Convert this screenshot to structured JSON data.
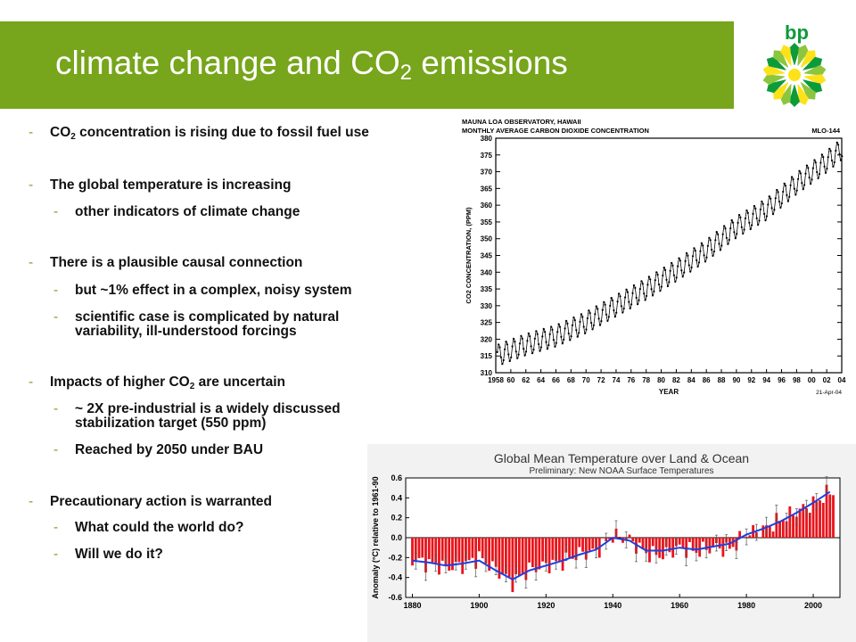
{
  "slide": {
    "title_main": "climate change and CO",
    "title_sub": "2",
    "title_tail": " emissions",
    "logo_text": "bp"
  },
  "bullets": [
    {
      "level": 1,
      "pre": "CO",
      "sub": "2",
      "post": " concentration is rising due to fossil fuel use"
    },
    {
      "level": 1,
      "pre": "The global temperature is increasing"
    },
    {
      "level": 2,
      "pre": "other indicators of climate change"
    },
    {
      "level": 1,
      "pre": "There is a plausible causal connection"
    },
    {
      "level": 2,
      "pre": "but ~1% effect in a complex, noisy system"
    },
    {
      "level": 2,
      "pre": "scientific case is complicated by natural",
      "line2": "variability, ill-understood forcings"
    },
    {
      "level": 1,
      "pre": "Impacts of higher CO",
      "sub": "2",
      "post": " are uncertain"
    },
    {
      "level": 2,
      "pre": "~ 2X pre-industrial is a widely discussed",
      "line2": "stabilization target (550 ppm)"
    },
    {
      "level": 2,
      "pre": "Reached by 2050 under BAU"
    },
    {
      "level": 1,
      "pre": "Precautionary action is warranted"
    },
    {
      "level": 2,
      "pre": "What could the world do?"
    },
    {
      "level": 2,
      "pre": "Will we do it?"
    }
  ],
  "chart_data": [
    {
      "type": "line",
      "title": "MAUNA LOA OBSERVATORY, HAWAII",
      "subtitle": "MONTHLY AVERAGE CARBON DIOXIDE CONCENTRATION",
      "tag": "MLO-144",
      "ylabel": "CO2 CONCENTRATION, (PPM)",
      "xlabel": "YEAR",
      "date_note": "21-Apr-04",
      "ylim": [
        310,
        380
      ],
      "xlim": [
        1958,
        2004
      ],
      "yticks": [
        310,
        315,
        320,
        325,
        330,
        335,
        340,
        345,
        350,
        355,
        360,
        365,
        370,
        375,
        380
      ],
      "xtick_labels": [
        "1958",
        "60",
        "62",
        "64",
        "66",
        "68",
        "70",
        "72",
        "74",
        "76",
        "78",
        "80",
        "82",
        "84",
        "86",
        "88",
        "90",
        "92",
        "94",
        "96",
        "98",
        "00",
        "02",
        "04"
      ],
      "series": [
        {
          "x": [
            1958,
            1962,
            1966,
            1970,
            1974,
            1978,
            1982,
            1986,
            1990,
            1994,
            1998,
            2002,
            2004
          ],
          "y": [
            315.0,
            318.4,
            321.0,
            325.0,
            330.0,
            335.0,
            340.5,
            346.5,
            353.5,
            358.8,
            366.5,
            373.0,
            376.8
          ]
        }
      ],
      "seasonal_amplitude": 3.2,
      "color": "#000000"
    },
    {
      "type": "bar",
      "title": "Global Mean Temperature over Land & Ocean",
      "subtitle": "Preliminary: New NOAA Surface Temperatures",
      "ylabel": "Anomaly (°C) relative to 1961-90",
      "ylim": [
        -0.6,
        0.6
      ],
      "xlim": [
        1878,
        2008
      ],
      "yticks": [
        "0.6",
        "0.4",
        "0.2",
        "0.0",
        "-0.2",
        "-0.4",
        "-0.6"
      ],
      "xtick_labels": [
        "1880",
        "1900",
        "1920",
        "1940",
        "1960",
        "1980",
        "2000"
      ],
      "bar_color": "#e8141b",
      "smooth_color": "#1d3fe0",
      "series": [
        {
          "name": "annual",
          "x": [
            1880,
            1885,
            1890,
            1895,
            1900,
            1905,
            1910,
            1915,
            1920,
            1925,
            1930,
            1935,
            1940,
            1945,
            1950,
            1955,
            1960,
            1965,
            1970,
            1975,
            1980,
            1985,
            1990,
            1995,
            2000,
            2005
          ],
          "y": [
            -0.22,
            -0.26,
            -0.3,
            -0.28,
            -0.2,
            -0.32,
            -0.45,
            -0.32,
            -0.28,
            -0.24,
            -0.16,
            -0.14,
            0.02,
            -0.02,
            -0.16,
            -0.18,
            -0.1,
            -0.14,
            -0.1,
            -0.12,
            0.04,
            0.08,
            0.18,
            0.26,
            0.34,
            0.46
          ]
        },
        {
          "name": "smoothed",
          "x": [
            1880,
            1885,
            1890,
            1895,
            1900,
            1905,
            1910,
            1915,
            1920,
            1925,
            1930,
            1935,
            1940,
            1945,
            1950,
            1955,
            1960,
            1965,
            1970,
            1975,
            1980,
            1985,
            1990,
            1995,
            2000,
            2005
          ],
          "y": [
            -0.23,
            -0.25,
            -0.28,
            -0.26,
            -0.23,
            -0.33,
            -0.42,
            -0.33,
            -0.28,
            -0.23,
            -0.17,
            -0.12,
            0.0,
            -0.03,
            -0.13,
            -0.13,
            -0.1,
            -0.12,
            -0.09,
            -0.06,
            0.03,
            0.09,
            0.16,
            0.25,
            0.35,
            0.46
          ]
        }
      ]
    }
  ]
}
